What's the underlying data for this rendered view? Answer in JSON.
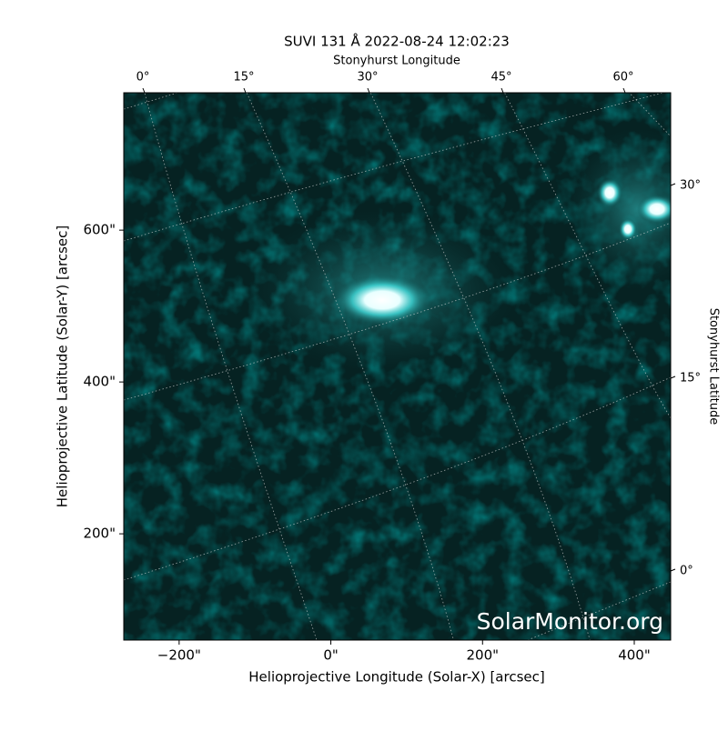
{
  "chart_data": {
    "type": "image",
    "title": "SUVI 131 Å 2022-08-24 12:02:23",
    "xlabel": "Helioprojective Longitude (Solar-X) [arcsec]",
    "ylabel": "Helioprojective Latitude (Solar-Y) [arcsec]",
    "x2label": "Stonyhurst Longitude",
    "y2label": "Stonyhurst Latitude",
    "xlim": [
      -273,
      448
    ],
    "ylim": [
      60,
      781
    ],
    "xticks": [
      {
        "value": -200,
        "label": "−200\""
      },
      {
        "value": 0,
        "label": "0\""
      },
      {
        "value": 200,
        "label": "200\""
      },
      {
        "value": 400,
        "label": "400\""
      }
    ],
    "yticks": [
      {
        "value": 200,
        "label": "200\""
      },
      {
        "value": 400,
        "label": "400\""
      },
      {
        "value": 600,
        "label": "600\""
      }
    ],
    "x2ticks": [
      {
        "value": 0,
        "label": "0°"
      },
      {
        "value": 15,
        "label": "15°"
      },
      {
        "value": 30,
        "label": "30°"
      },
      {
        "value": 45,
        "label": "45°"
      },
      {
        "value": 60,
        "label": "60°"
      }
    ],
    "y2ticks": [
      {
        "value": 0,
        "label": "0°"
      },
      {
        "value": 15,
        "label": "15°"
      },
      {
        "value": 30,
        "label": "30°"
      }
    ],
    "watermark": "SolarMonitor.org"
  }
}
